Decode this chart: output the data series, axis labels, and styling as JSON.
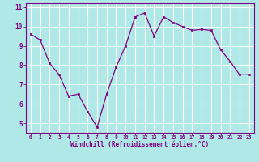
{
  "x": [
    0,
    1,
    2,
    3,
    4,
    5,
    6,
    7,
    8,
    9,
    10,
    11,
    12,
    13,
    14,
    15,
    16,
    17,
    18,
    19,
    20,
    21,
    22,
    23
  ],
  "y": [
    9.6,
    9.3,
    8.1,
    7.5,
    6.4,
    6.5,
    5.6,
    4.8,
    6.5,
    7.9,
    9.0,
    10.5,
    10.7,
    9.5,
    10.5,
    10.2,
    10.0,
    9.8,
    9.85,
    9.8,
    8.8,
    8.2,
    7.5,
    7.5
  ],
  "xlim": [
    -0.5,
    23.5
  ],
  "ylim": [
    4.5,
    11.2
  ],
  "yticks": [
    5,
    6,
    7,
    8,
    9,
    10,
    11
  ],
  "xticks": [
    0,
    1,
    2,
    3,
    4,
    5,
    6,
    7,
    8,
    9,
    10,
    11,
    12,
    13,
    14,
    15,
    16,
    17,
    18,
    19,
    20,
    21,
    22,
    23
  ],
  "xlabel": "Windchill (Refroidissement éolien,°C)",
  "line_color": "#800080",
  "marker_color": "#800080",
  "bg_color": "#b0e8e8",
  "grid_color": "#c8e8e8",
  "spine_color": "#800080",
  "tick_color": "#800080",
  "label_color": "#800080"
}
